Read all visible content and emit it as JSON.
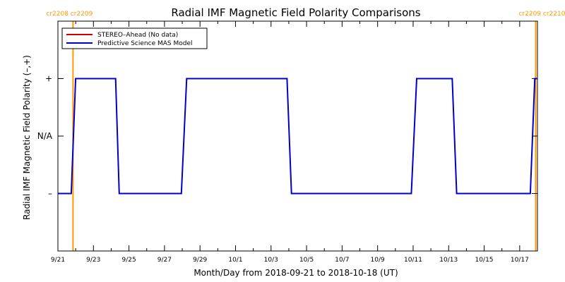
{
  "chart_data": {
    "type": "line",
    "title": "Radial IMF Magnetic Field Polarity Comparisons",
    "xlabel": "Month/Day from 2018-09-21 to 2018-10-18 (UT)",
    "ylabel": "Radial IMF Magnetic Field Polarity (–,+)",
    "x_range_days": [
      0,
      27
    ],
    "ylim": [
      -2,
      2
    ],
    "y_ticks": [
      {
        "value": 1,
        "label": "+"
      },
      {
        "value": 0,
        "label": "N/A"
      },
      {
        "value": -1,
        "label": "–"
      }
    ],
    "x_ticks": [
      {
        "day": 0,
        "label": "9/21"
      },
      {
        "day": 2,
        "label": "9/23"
      },
      {
        "day": 4,
        "label": "9/25"
      },
      {
        "day": 6,
        "label": "9/27"
      },
      {
        "day": 8,
        "label": "9/29"
      },
      {
        "day": 10,
        "label": "10/1"
      },
      {
        "day": 12,
        "label": "10/3"
      },
      {
        "day": 14,
        "label": "10/5"
      },
      {
        "day": 16,
        "label": "10/7"
      },
      {
        "day": 18,
        "label": "10/9"
      },
      {
        "day": 20,
        "label": "10/11"
      },
      {
        "day": 22,
        "label": "10/13"
      },
      {
        "day": 24,
        "label": "10/15"
      },
      {
        "day": 26,
        "label": "10/17"
      }
    ],
    "carrington_markers": [
      {
        "day": 0.85,
        "label": "cr2208 cr2209",
        "color": "#ff9900"
      },
      {
        "day": 26.9,
        "label": "cr2209 cr2210",
        "color": "#ff9900"
      }
    ],
    "series": [
      {
        "name": "STEREO–Ahead (No data)",
        "color": "#cc0000",
        "x": [],
        "y": []
      },
      {
        "name": "Predictive Science MAS Model",
        "color": "#0000cc",
        "x": [
          0,
          0.75,
          1.0,
          3.25,
          3.45,
          6.95,
          7.25,
          12.9,
          13.15,
          19.9,
          20.2,
          22.2,
          22.45,
          26.6,
          26.85,
          27.0
        ],
        "y": [
          -1,
          -1,
          1,
          1,
          -1,
          -1,
          1,
          1,
          -1,
          -1,
          1,
          1,
          -1,
          -1,
          1,
          1
        ]
      }
    ],
    "legend_position": "top-left",
    "grid": false
  }
}
